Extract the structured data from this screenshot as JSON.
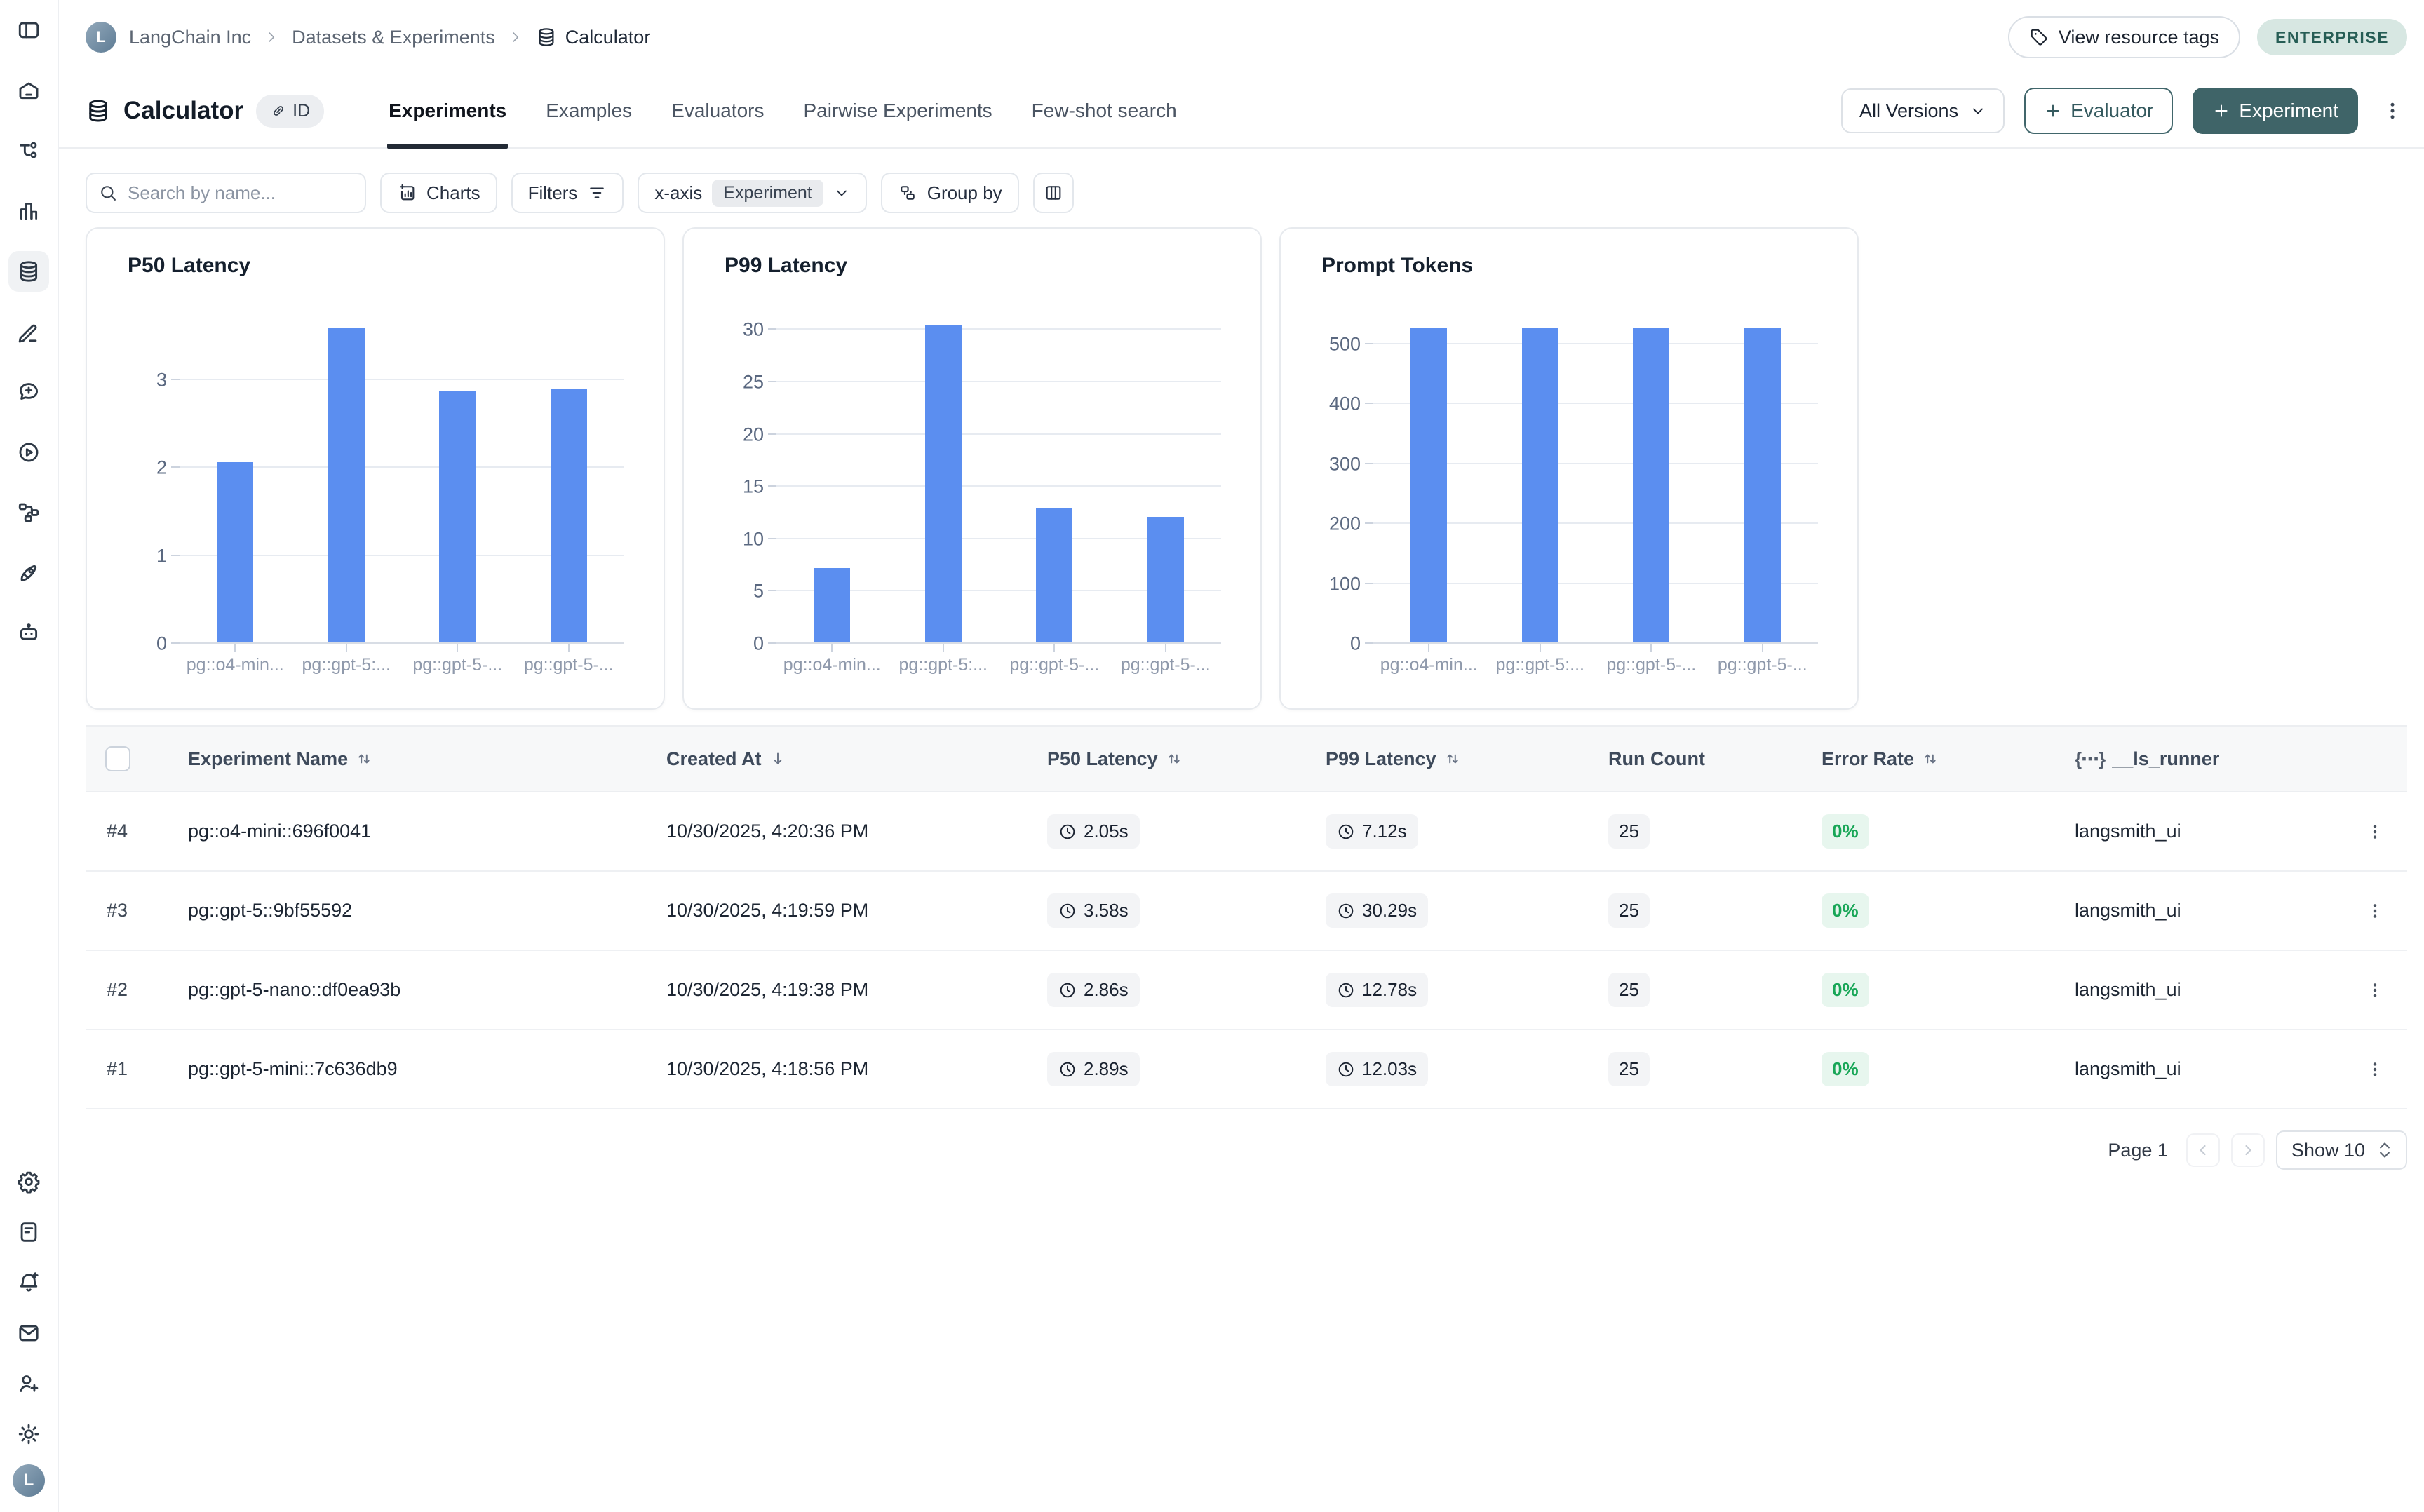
{
  "sidebar": {
    "top_icons": [
      "panel-toggle",
      "home",
      "tracing",
      "monitoring",
      "datasets",
      "annotation",
      "prompts",
      "playground",
      "workflows",
      "deployments",
      "agents"
    ],
    "active_icon": "datasets",
    "bottom_icons": [
      "settings",
      "docs",
      "notifications",
      "mail",
      "invite-user",
      "theme"
    ],
    "avatar_letter": "L"
  },
  "breadcrumb": {
    "org_avatar_letter": "L",
    "org": "LangChain Inc",
    "section": "Datasets & Experiments",
    "page": "Calculator"
  },
  "header_actions": {
    "view_resource_tags": "View resource tags",
    "plan_badge": "ENTERPRISE"
  },
  "title_bar": {
    "title": "Calculator",
    "id_badge": "ID",
    "tabs": [
      {
        "label": "Experiments",
        "active": true
      },
      {
        "label": "Examples",
        "active": false
      },
      {
        "label": "Evaluators",
        "active": false
      },
      {
        "label": "Pairwise Experiments",
        "active": false
      },
      {
        "label": "Few-shot search",
        "active": false
      }
    ],
    "versions_dropdown": "All Versions",
    "evaluator_button": "Evaluator",
    "experiment_button": "Experiment"
  },
  "toolbar": {
    "search_placeholder": "Search by name...",
    "charts_button": "Charts",
    "filters_button": "Filters",
    "xaxis_label": "x-axis",
    "xaxis_value": "Experiment",
    "group_by_button": "Group by"
  },
  "chart_data": [
    {
      "type": "bar",
      "title": "P50 Latency",
      "categories": [
        "pg::o4-min...",
        "pg::gpt-5:...",
        "pg::gpt-5-...",
        "pg::gpt-5-..."
      ],
      "values": [
        2.05,
        3.58,
        2.86,
        2.89
      ],
      "unit": "s",
      "yticks": [
        0,
        1,
        2,
        3
      ],
      "ylim": [
        0,
        3.75
      ],
      "bar_color": "#5b8ef0",
      "grid": true,
      "legend": false
    },
    {
      "type": "bar",
      "title": "P99 Latency",
      "categories": [
        "pg::o4-min...",
        "pg::gpt-5:...",
        "pg::gpt-5-...",
        "pg::gpt-5-..."
      ],
      "values": [
        7.12,
        30.29,
        12.78,
        12.03
      ],
      "unit": "s",
      "yticks": [
        0,
        5,
        10,
        15,
        20,
        25,
        30
      ],
      "ylim": [
        0,
        31.5
      ],
      "bar_color": "#5b8ef0",
      "grid": true,
      "legend": false
    },
    {
      "type": "bar",
      "title": "Prompt Tokens",
      "categories": [
        "pg::o4-min...",
        "pg::gpt-5:...",
        "pg::gpt-5-...",
        "pg::gpt-5-..."
      ],
      "values": [
        525,
        525,
        525,
        525
      ],
      "unit": "tokens",
      "yticks": [
        0,
        100,
        200,
        300,
        400,
        500
      ],
      "ylim": [
        0,
        550
      ],
      "bar_color": "#5b8ef0",
      "grid": true,
      "legend": false
    }
  ],
  "table": {
    "headers": {
      "name": "Experiment Name",
      "created": "Created At",
      "p50": "P50 Latency",
      "p99": "P99 Latency",
      "run": "Run Count",
      "error": "Error Rate",
      "runner": "__ls_runner"
    },
    "rows": [
      {
        "index": "#4",
        "name": "pg::o4-mini::696f0041",
        "created_at": "10/30/2025, 4:20:36 PM",
        "p50": "2.05s",
        "p99": "7.12s",
        "run_count": "25",
        "error_rate": "0%",
        "runner": "langsmith_ui"
      },
      {
        "index": "#3",
        "name": "pg::gpt-5::9bf55592",
        "created_at": "10/30/2025, 4:19:59 PM",
        "p50": "3.58s",
        "p99": "30.29s",
        "run_count": "25",
        "error_rate": "0%",
        "runner": "langsmith_ui"
      },
      {
        "index": "#2",
        "name": "pg::gpt-5-nano::df0ea93b",
        "created_at": "10/30/2025, 4:19:38 PM",
        "p50": "2.86s",
        "p99": "12.78s",
        "run_count": "25",
        "error_rate": "0%",
        "runner": "langsmith_ui"
      },
      {
        "index": "#1",
        "name": "pg::gpt-5-mini::7c636db9",
        "created_at": "10/30/2025, 4:18:56 PM",
        "p50": "2.89s",
        "p99": "12.03s",
        "run_count": "25",
        "error_rate": "0%",
        "runner": "langsmith_ui"
      }
    ]
  },
  "pagination": {
    "page_label": "Page 1",
    "show_label": "Show 10"
  },
  "colors": {
    "bar_blue": "#5b8ef0",
    "teal_button": "#3f6468",
    "enterprise_badge_bg": "#d7e7e2",
    "enterprise_badge_text": "#265d55",
    "error_green": "#18a657",
    "error_green_bg": "#e7f6ee"
  }
}
